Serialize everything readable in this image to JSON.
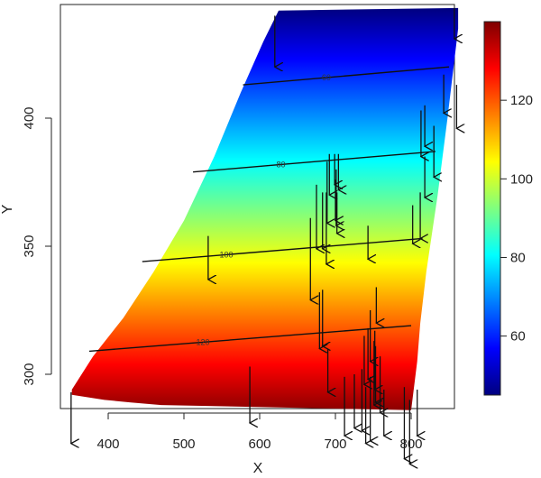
{
  "chart_data": {
    "type": "heatmap",
    "title": "",
    "xlabel": "X",
    "ylabel": "Y",
    "xlim": [
      345,
      865
    ],
    "ylim": [
      284,
      443
    ],
    "xticks": [
      400,
      500,
      600,
      700,
      800
    ],
    "yticks": [
      300,
      350,
      400
    ],
    "x_tick_labels": [
      "400",
      "500",
      "600",
      "700",
      "800"
    ],
    "y_tick_labels": [
      "300",
      "350",
      "400"
    ],
    "colorbar": {
      "range": [
        45,
        140
      ],
      "ticks": [
        60,
        80,
        100,
        120
      ],
      "tick_labels": [
        "60",
        "80",
        "100",
        "120"
      ],
      "colors": [
        "#00007f",
        "#0000ff",
        "#007fff",
        "#00ffff",
        "#7fff7f",
        "#ffff00",
        "#ff7f00",
        "#ff0000",
        "#7f0000"
      ]
    },
    "field_polygon": [
      [
        352,
        294
      ],
      [
        380,
        307
      ],
      [
        420,
        322
      ],
      [
        460,
        340
      ],
      [
        500,
        360
      ],
      [
        540,
        385
      ],
      [
        575,
        410
      ],
      [
        605,
        430
      ],
      [
        625,
        442
      ],
      [
        862,
        443
      ],
      [
        862,
        435
      ],
      [
        848,
        400
      ],
      [
        835,
        370
      ],
      [
        820,
        340
      ],
      [
        812,
        320
      ],
      [
        808,
        305
      ],
      [
        800,
        286
      ],
      [
        470,
        288
      ],
      [
        430,
        289
      ],
      [
        395,
        290
      ],
      [
        352,
        292
      ]
    ],
    "contours": [
      {
        "label": "60",
        "points": [
          [
            578,
            413
          ],
          [
            850,
            420
          ]
        ],
        "label_x": 688
      },
      {
        "label": "80",
        "points": [
          [
            512,
            379
          ],
          [
            832,
            387
          ]
        ],
        "label_x": 628
      },
      {
        "label": "100",
        "points": [
          [
            445,
            344
          ],
          [
            815,
            353
          ]
        ],
        "label_x": 556
      },
      {
        "label": "120",
        "points": [
          [
            375,
            309
          ],
          [
            800,
            319
          ]
        ],
        "label_x": 525
      }
    ],
    "vectors": [
      [
        620,
        440,
        20
      ],
      [
        857,
        443,
        12
      ],
      [
        843,
        417,
        15
      ],
      [
        860,
        413,
        17
      ],
      [
        818,
        405,
        16
      ],
      [
        813,
        403,
        18
      ],
      [
        830,
        397,
        20
      ],
      [
        818,
        385,
        16
      ],
      [
        692,
        386,
        16
      ],
      [
        699,
        386,
        12
      ],
      [
        704,
        386,
        14
      ],
      [
        689,
        383,
        24
      ],
      [
        701,
        380,
        22
      ],
      [
        675,
        374,
        25
      ],
      [
        683,
        371,
        22
      ],
      [
        688,
        371,
        28
      ],
      [
        700,
        376,
        16
      ],
      [
        702,
        371,
        16
      ],
      [
        812,
        371,
        18
      ],
      [
        802,
        366,
        15
      ],
      [
        667,
        361,
        32
      ],
      [
        532,
        354,
        17
      ],
      [
        743,
        358,
        13
      ],
      [
        679,
        332,
        22
      ],
      [
        683,
        333,
        22
      ],
      [
        754,
        334,
        14
      ],
      [
        746,
        325,
        20
      ],
      [
        743,
        318,
        20
      ],
      [
        752,
        317,
        23
      ],
      [
        753,
        311,
        22
      ],
      [
        690,
        310,
        17
      ],
      [
        738,
        315,
        19
      ],
      [
        751,
        313,
        25
      ],
      [
        759,
        307,
        22
      ],
      [
        735,
        302,
        24
      ],
      [
        746,
        299,
        25
      ],
      [
        712,
        299,
        23
      ],
      [
        725,
        300,
        21
      ],
      [
        587,
        303,
        22
      ],
      [
        351,
        293,
        20
      ],
      [
        740,
        295,
        22
      ],
      [
        764,
        294,
        18
      ],
      [
        791,
        295,
        28
      ],
      [
        798,
        290,
        25
      ],
      [
        808,
        294,
        18
      ]
    ]
  }
}
